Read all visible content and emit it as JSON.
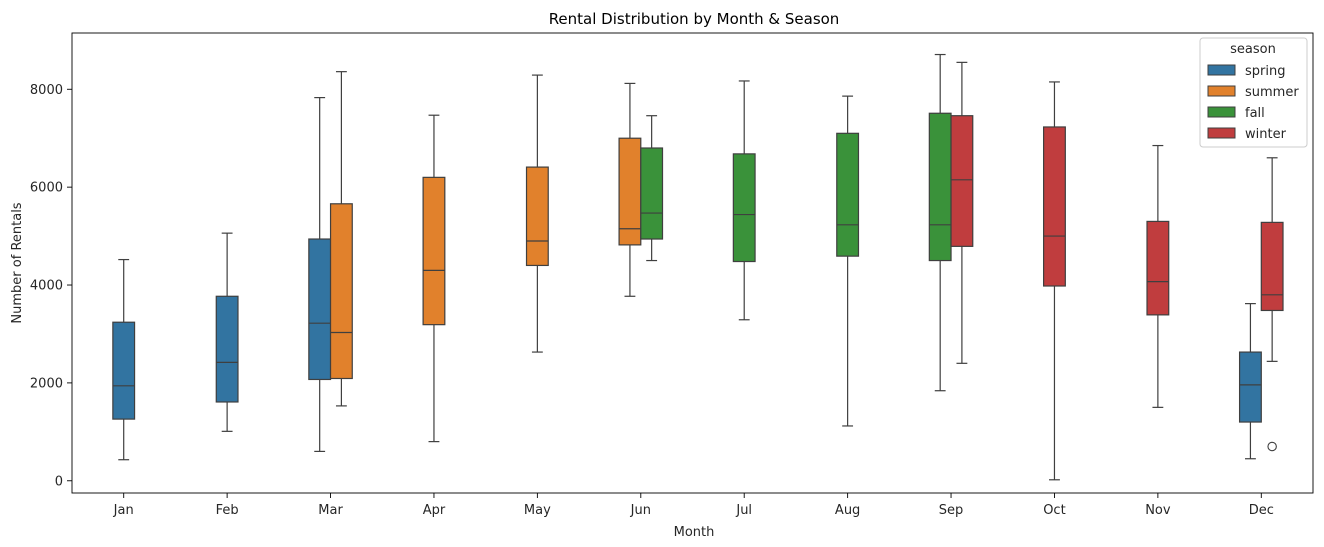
{
  "chart_data": {
    "type": "box",
    "title": "Rental Distribution by Month & Season",
    "xlabel": "Month",
    "ylabel": "Number of Rentals",
    "ylim": [
      -250,
      9150
    ],
    "yticks": [
      0,
      2000,
      4000,
      6000,
      8000
    ],
    "ytick_labels": [
      "0",
      "2000",
      "4000",
      "6000",
      "8000"
    ],
    "categories": [
      "Jan",
      "Feb",
      "Mar",
      "Apr",
      "May",
      "Jun",
      "Jul",
      "Aug",
      "Sep",
      "Oct",
      "Nov",
      "Dec"
    ],
    "legend": {
      "title": "season",
      "placement": "top-right"
    },
    "series": [
      {
        "name": "spring",
        "color": "#3274a1",
        "boxes": [
          {
            "category": "Jan",
            "whislo": 430,
            "q1": 1260,
            "med": 1940,
            "q3": 3240,
            "whishi": 4520,
            "fliers": []
          },
          {
            "category": "Feb",
            "whislo": 1010,
            "q1": 1610,
            "med": 2420,
            "q3": 3770,
            "whishi": 5060,
            "fliers": []
          },
          {
            "category": "Mar",
            "whislo": 600,
            "q1": 2070,
            "med": 3220,
            "q3": 4940,
            "whishi": 7830,
            "fliers": []
          },
          {
            "category": "Dec",
            "whislo": 450,
            "q1": 1200,
            "med": 1960,
            "q3": 2630,
            "whishi": 3620,
            "fliers": []
          }
        ]
      },
      {
        "name": "summer",
        "color": "#e1812c",
        "boxes": [
          {
            "category": "Mar",
            "whislo": 1530,
            "q1": 2090,
            "med": 3030,
            "q3": 5660,
            "whishi": 8360,
            "fliers": []
          },
          {
            "category": "Apr",
            "whislo": 800,
            "q1": 3190,
            "med": 4300,
            "q3": 6200,
            "whishi": 7470,
            "fliers": []
          },
          {
            "category": "May",
            "whislo": 2630,
            "q1": 4400,
            "med": 4900,
            "q3": 6410,
            "whishi": 8290,
            "fliers": []
          },
          {
            "category": "Jun",
            "whislo": 3770,
            "q1": 4820,
            "med": 5150,
            "q3": 7000,
            "whishi": 8120,
            "fliers": []
          }
        ]
      },
      {
        "name": "fall",
        "color": "#3a923a",
        "boxes": [
          {
            "category": "Jun",
            "whislo": 4500,
            "q1": 4940,
            "med": 5470,
            "q3": 6800,
            "whishi": 7460,
            "fliers": []
          },
          {
            "category": "Jul",
            "whislo": 3290,
            "q1": 4480,
            "med": 5440,
            "q3": 6680,
            "whishi": 8170,
            "fliers": []
          },
          {
            "category": "Aug",
            "whislo": 1120,
            "q1": 4590,
            "med": 5230,
            "q3": 7100,
            "whishi": 7860,
            "fliers": []
          },
          {
            "category": "Sep",
            "whislo": 1840,
            "q1": 4500,
            "med": 5230,
            "q3": 7510,
            "whishi": 8710,
            "fliers": []
          }
        ]
      },
      {
        "name": "winter",
        "color": "#c03d3e",
        "boxes": [
          {
            "category": "Sep",
            "whislo": 2400,
            "q1": 4790,
            "med": 6150,
            "q3": 7460,
            "whishi": 8550,
            "fliers": []
          },
          {
            "category": "Oct",
            "whislo": 20,
            "q1": 3980,
            "med": 5000,
            "q3": 7230,
            "whishi": 8150,
            "fliers": []
          },
          {
            "category": "Nov",
            "whislo": 1500,
            "q1": 3390,
            "med": 4070,
            "q3": 5300,
            "whishi": 6850,
            "fliers": []
          },
          {
            "category": "Dec",
            "whislo": 2440,
            "q1": 3480,
            "med": 3800,
            "q3": 5280,
            "whishi": 6600,
            "fliers": [
              700
            ]
          }
        ]
      }
    ]
  }
}
